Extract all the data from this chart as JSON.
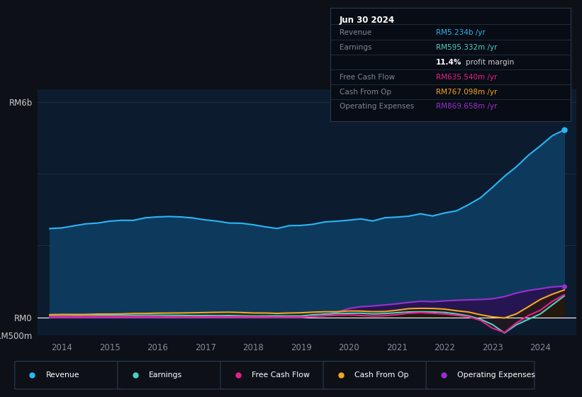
{
  "background_color": "#0d1117",
  "plot_bg_color": "#0d1b2e",
  "revenue_color": "#29b6f6",
  "revenue_fill": "#0d3a5c",
  "earnings_color": "#4dd0c4",
  "earnings_fill": "#0d2e2e",
  "fcf_color": "#e91e8c",
  "fcf_fill": "#2a0d1a",
  "cashfromop_color": "#f5a623",
  "cashfromop_fill": "#2a1a00",
  "opex_color": "#9b30d0",
  "opex_fill": "#2a1050",
  "grid_color": "#1e2d44",
  "zero_line_color": "#ffffff",
  "legend_border_color": "#2a3a50",
  "legend_items": [
    {
      "label": "Revenue",
      "color": "#29b6f6"
    },
    {
      "label": "Earnings",
      "color": "#4dd0c4"
    },
    {
      "label": "Free Cash Flow",
      "color": "#e91e8c"
    },
    {
      "label": "Cash From Op",
      "color": "#f5a623"
    },
    {
      "label": "Operating Expenses",
      "color": "#9b30d0"
    }
  ]
}
